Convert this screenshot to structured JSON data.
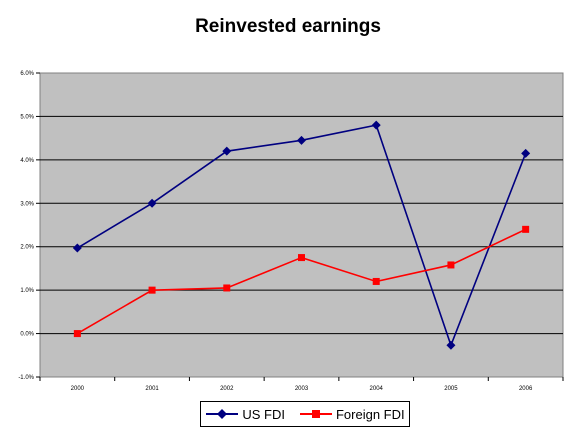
{
  "chart_data": {
    "type": "line",
    "title": "Reinvested earnings",
    "categories": [
      "2000",
      "2001",
      "2002",
      "2003",
      "2004",
      "2005",
      "2006"
    ],
    "y_ticks": [
      "-1.0%",
      "0.0%",
      "1.0%",
      "2.0%",
      "3.0%",
      "4.0%",
      "5.0%",
      "6.0%"
    ],
    "ylim": [
      -1.0,
      6.0
    ],
    "grid": true,
    "legend_position": "bottom",
    "series": [
      {
        "name": "US FDI",
        "color": "#000080",
        "marker": "diamond",
        "values": [
          1.97,
          3.0,
          4.2,
          4.45,
          4.8,
          -0.27,
          4.15
        ]
      },
      {
        "name": "Foreign FDI",
        "color": "#ff0000",
        "marker": "square",
        "values": [
          0.0,
          1.0,
          1.05,
          1.75,
          1.2,
          1.58,
          2.4
        ]
      }
    ]
  }
}
